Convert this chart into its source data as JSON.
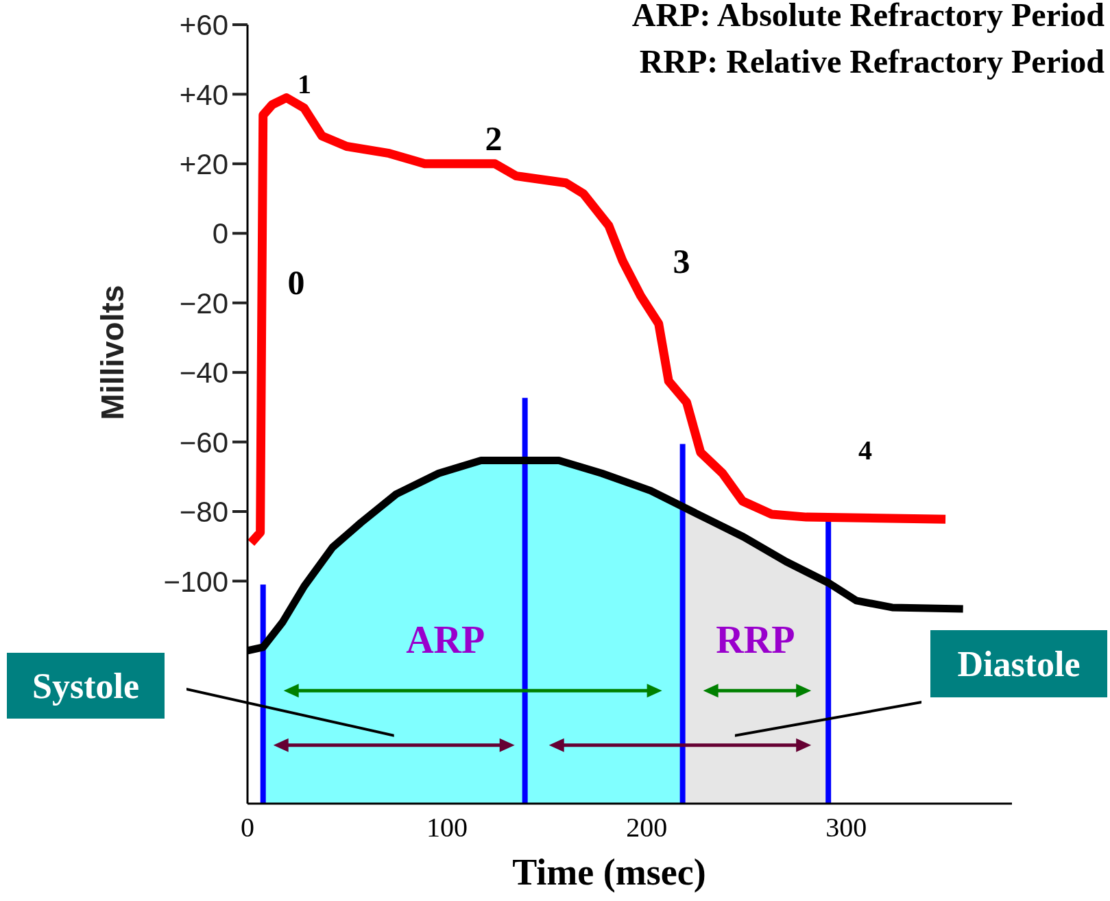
{
  "chart_data": {
    "type": "line",
    "xlabel": "Time (msec)",
    "ylabel": "Millivolts",
    "xlim": [
      0,
      383
    ],
    "xticks": [
      0,
      100,
      200,
      300
    ],
    "ylim": [
      -164,
      60
    ],
    "yticks": [
      {
        "value": 60,
        "label": "+60"
      },
      {
        "value": 40,
        "label": "+40"
      },
      {
        "value": 20,
        "label": "+20"
      },
      0,
      {
        "value": -20,
        "label": "−20"
      },
      {
        "value": -40,
        "label": "−40"
      },
      {
        "value": -60,
        "label": "−60"
      },
      {
        "value": -80,
        "label": "−80"
      },
      {
        "value": -100,
        "label": "−100"
      }
    ],
    "series": [
      {
        "color": "#ff0000",
        "x": [
          1.8,
          6.4,
          7.8,
          12.4,
          19.5,
          28.4,
          37.3,
          49.7,
          71,
          88.8,
          124,
          134.6,
          159.5,
          168.3,
          181,
          188,
          197,
          206,
          211,
          220,
          227,
          238,
          248,
          262.7,
          280,
          349.7
        ],
        "values": [
          -89,
          -86,
          34,
          37,
          39,
          36,
          28,
          25,
          23,
          20,
          20,
          16.5,
          14.5,
          11.4,
          2.2,
          -8,
          -18,
          -26,
          -42.5,
          -48.6,
          -63,
          -69,
          -77,
          -80.8,
          -81.6,
          -82.2
        ]
      },
      {
        "color": "#000000",
        "x": [
          0,
          7.8,
          17.7,
          28.4,
          42.6,
          56.8,
          74.5,
          95.8,
          117,
          156,
          177.5,
          202,
          223.6,
          248.5,
          269.8,
          291,
          305,
          323,
          358.5
        ],
        "values": [
          -120,
          -119,
          -111.7,
          -101.5,
          -90.3,
          -83.2,
          -75,
          -69,
          -65.3,
          -65.3,
          -69,
          -74,
          -80.2,
          -87.3,
          -94.4,
          -100.5,
          -105.6,
          -107.6,
          -108
        ]
      }
    ],
    "bands": [
      {
        "axis": "x",
        "from": 7.8,
        "to": 218,
        "color": "#80ffff"
      },
      {
        "axis": "x",
        "from": 218,
        "to": 291,
        "color": "#e6e6e6"
      }
    ],
    "ref_lines": [
      {
        "axis": "x",
        "value": 7.8,
        "color": "#0000ff"
      },
      {
        "axis": "x",
        "value": 139,
        "color": "#0000ff"
      },
      {
        "axis": "x",
        "value": 218,
        "color": "#0000ff"
      },
      {
        "axis": "x",
        "value": 291,
        "color": "#0000ff"
      }
    ],
    "annotations": [
      "ARP: Absolute Refractory Period",
      "RRP: Relative Refractory Period",
      "Systole",
      "Diastole",
      "0",
      "1",
      "2",
      "3",
      "4",
      "ARP",
      "RRP"
    ],
    "grid": false,
    "line_style": "solid"
  }
}
